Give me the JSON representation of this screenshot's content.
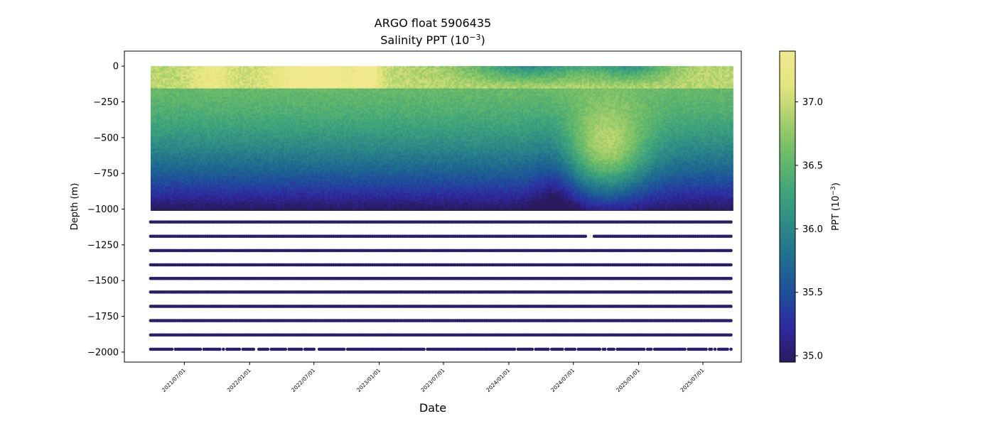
{
  "chart_data": {
    "type": "scatter",
    "title": "ARGO float 5906435",
    "subtitle_prefix": "Salinity PPT (10",
    "subtitle_exp": "−3",
    "subtitle_suffix": ")",
    "xlabel": "Date",
    "ylabel": "Depth (m)",
    "xlim": [
      "2021-01-13",
      "2025-10-17"
    ],
    "ylim": [
      -2070,
      105
    ],
    "x_ticks": [
      "2021/07/01",
      "2022/01/01",
      "2022/07/01",
      "2023/01/01",
      "2023/07/01",
      "2024/01/01",
      "2024/07/01",
      "2025/01/01",
      "2025/07/01"
    ],
    "y_ticks": [
      0,
      -250,
      -500,
      -750,
      -1000,
      -1250,
      -1500,
      -1750,
      -2000
    ],
    "y_tick_labels": [
      "0",
      "−250",
      "−500",
      "−750",
      "−1000",
      "−1250",
      "−1500",
      "−1750",
      "−2000"
    ],
    "data_range": {
      "start": "2021-03-28",
      "end": "2025-09-20"
    },
    "profile_interval_days": 5,
    "deep_levels": [
      -1090,
      -1190,
      -1290,
      -1390,
      -1485,
      -1580,
      -1680,
      -1780,
      -1880,
      -1980
    ],
    "deep_value": 35.0,
    "colorbar": {
      "label_prefix": "PPT (10",
      "label_exp": "−3",
      "label_suffix": ")",
      "vmin": 34.95,
      "vmax": 37.4,
      "ticks": [
        35.0,
        35.5,
        36.0,
        36.5,
        37.0
      ],
      "tick_labels": [
        "35.0",
        "35.5",
        "36.0",
        "36.5",
        "37.0"
      ],
      "colormap": "haline",
      "colors": [
        "#2a1a5e",
        "#2e2aa0",
        "#1f4f9b",
        "#1f6e8e",
        "#2d8b86",
        "#41a67a",
        "#6cbb68",
        "#a6cf6b",
        "#e4e57f",
        "#f2e98e"
      ]
    },
    "grid": false,
    "legend": "none"
  }
}
